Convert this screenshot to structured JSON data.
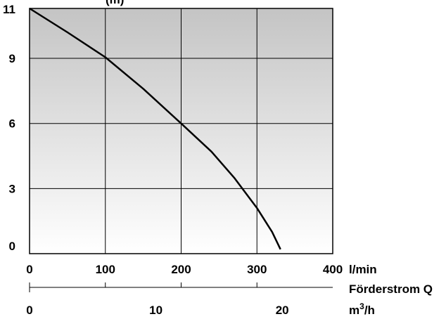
{
  "chart_data": {
    "type": "line",
    "title": "",
    "top_label_fragment": "(m)",
    "x_unit": "l/min",
    "x_axis_title": "Förderstrom Q",
    "secondary_x_unit_base": "m",
    "secondary_x_unit_sup": "3",
    "secondary_x_unit_tail": "/h",
    "xlim": [
      0,
      400
    ],
    "ylim": [
      0,
      11.3
    ],
    "x_ticks": [
      0,
      100,
      200,
      300,
      400
    ],
    "y_ticks": [
      0,
      3,
      6,
      9,
      11
    ],
    "secondary_x_ticks": [
      0,
      10,
      20
    ],
    "secondary_x_lim": [
      0,
      24
    ],
    "grid": true,
    "background_gradient": [
      "#c4c4c4",
      "#ffffff"
    ],
    "series": [
      {
        "name": "",
        "color": "#000000",
        "points": [
          [
            0,
            11.3
          ],
          [
            50,
            10.2
          ],
          [
            100,
            9.05
          ],
          [
            150,
            7.6
          ],
          [
            200,
            6.0
          ],
          [
            240,
            4.7
          ],
          [
            270,
            3.5
          ],
          [
            300,
            2.1
          ],
          [
            320,
            1.0
          ],
          [
            331,
            0.2
          ]
        ]
      }
    ]
  }
}
